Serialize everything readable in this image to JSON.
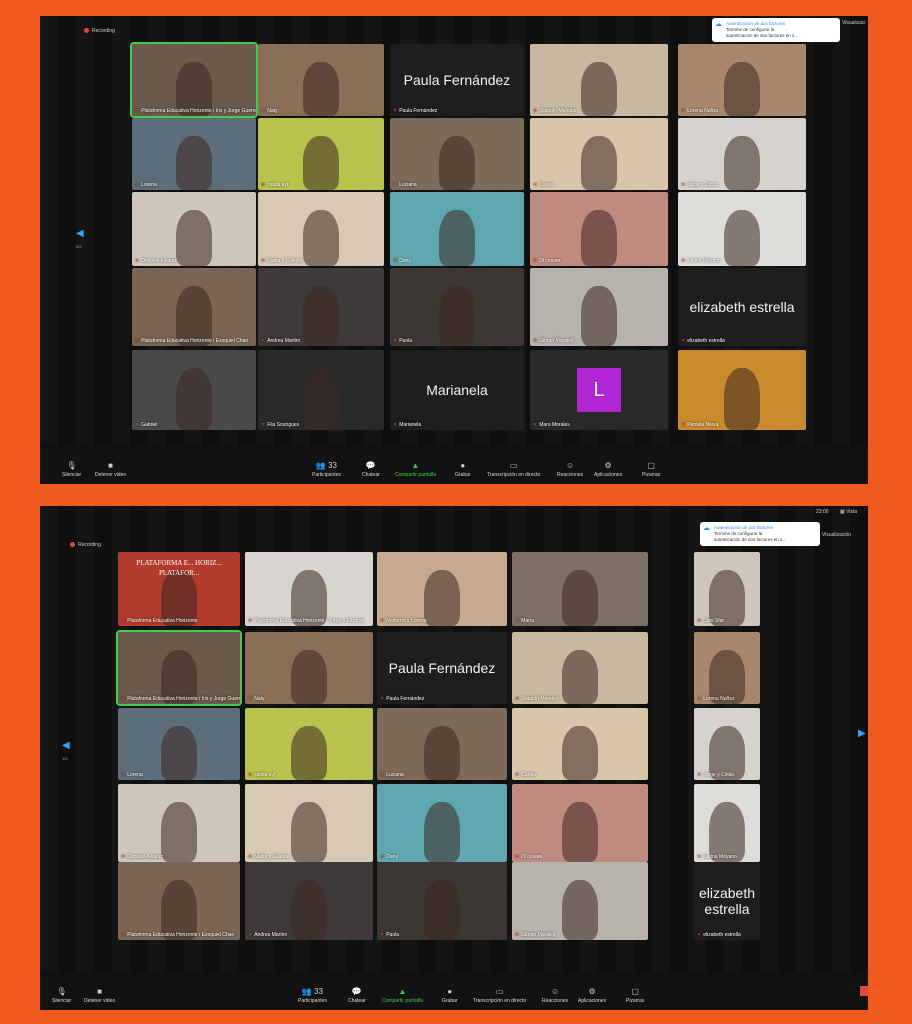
{
  "top": {
    "recording": "Recording",
    "page": "2/3",
    "notification": {
      "title": "Autenticación de dos factores",
      "line1": "Termine de configurar la",
      "line2": "autenticación de dos factores en s..."
    },
    "visualizacion": "Visualizaci",
    "tiles": [
      {
        "name": "Plataforma Educativa Horizonte / Iris y Jorge Guerrero",
        "active": true
      },
      {
        "name": "Naty"
      },
      {
        "name": "Paula Fernández",
        "big": "Paula Fernández"
      },
      {
        "name": "Joaquín Mendez"
      },
      {
        "name": "Lorena Nuñez"
      },
      {
        "name": "Lorena"
      },
      {
        "name": "salida ayl"
      },
      {
        "name": "Luciana"
      },
      {
        "name": "Carola"
      },
      {
        "name": "Jorge y Cintia"
      },
      {
        "name": "Denisse Alvarez"
      },
      {
        "name": "Nadia y Celeste"
      },
      {
        "name": "Dany"
      },
      {
        "name": "Di cesare"
      },
      {
        "name": "Karina Moyano"
      },
      {
        "name": "Plataforma Educativa Horizonte / Ezequiel Chao"
      },
      {
        "name": "Andrea Martini"
      },
      {
        "name": "Paola"
      },
      {
        "name": "Gibran Morales"
      },
      {
        "name": "elizabeth estrella",
        "big": "elizabeth estrella"
      },
      {
        "name": "Gabriel"
      },
      {
        "name": "Fila Sourigues"
      },
      {
        "name": "Marianela",
        "big": "Marianela"
      },
      {
        "name": "Mara Morales",
        "letter": "L"
      },
      {
        "name": "Pamela Nieva"
      }
    ],
    "toolbar": {
      "silenciar": "Silenciar",
      "detener": "Detener video",
      "participantes": "Participantes",
      "participantes_count": "33",
      "chatear": "Chatear",
      "compartir": "Compartir pantalla",
      "grabar": "Grabar",
      "transcripcion": "Transcripción en directo",
      "reacciones": "Reacciones",
      "aplicaciones": "Aplicaciones",
      "pizarras": "Pizarras"
    }
  },
  "bottom": {
    "recording": "Recording",
    "clock": "23:00",
    "vista": "Vista",
    "page": "1/2",
    "notification": {
      "title": "Autenticación de dos factores",
      "line1": "Termine de configurar la",
      "line2": "autenticación de dos factores en s..."
    },
    "visualizacion": "Visualización",
    "tiles": [
      {
        "name": "Plataforma Educativa Horizonte",
        "logo": "PLATAFORMA E... HORIZ... PLATAFOR..."
      },
      {
        "name": "Plataforma Educativa Horizonte / Jorge y Elizabet"
      },
      {
        "name": "Norberto y Lorena"
      },
      {
        "name": "María"
      },
      {
        "name": "Dani Sfar"
      },
      {
        "name": "Plataforma Educativa Horizonte / Iris y Jorge Guerrero",
        "active": true
      },
      {
        "name": "Naty"
      },
      {
        "name": "Paula Fernández",
        "big": "Paula Fernández"
      },
      {
        "name": "Joaquín Mendez"
      },
      {
        "name": "Lorena Nuñez"
      },
      {
        "name": "Lorena"
      },
      {
        "name": "salida ayl"
      },
      {
        "name": "Luciana"
      },
      {
        "name": "Carola"
      },
      {
        "name": "Jorge y Cintia"
      },
      {
        "name": "Denisse Alvarez"
      },
      {
        "name": "Nadia y Celeste"
      },
      {
        "name": "Dany"
      },
      {
        "name": "Di cesare"
      },
      {
        "name": "Karina Moyano"
      },
      {
        "name": "Plataforma Educativa Horizonte / Ezequiel Chao"
      },
      {
        "name": "Andrea Martini"
      },
      {
        "name": "Paola"
      },
      {
        "name": "Gibran Morales"
      },
      {
        "name": "elizabeth estrella",
        "big": "elizabeth estrella"
      }
    ],
    "toolbar": {
      "silenciar": "Silenciar",
      "detener": "Detener video",
      "participantes": "Participantes",
      "participantes_count": "33",
      "chatear": "Chatear",
      "compartir": "Compartir pantalla",
      "grabar": "Grabar",
      "transcripcion": "Transcripción en directo",
      "reacciones": "Reacciones",
      "aplicaciones": "Aplicaciones",
      "pizarras": "Pizarras"
    }
  },
  "colors": {
    "frame": "#f05a1e",
    "screen": "#101010",
    "active_border": "#3ccf4e",
    "avatar": "#b026d4",
    "accent": "#2d8cff"
  }
}
